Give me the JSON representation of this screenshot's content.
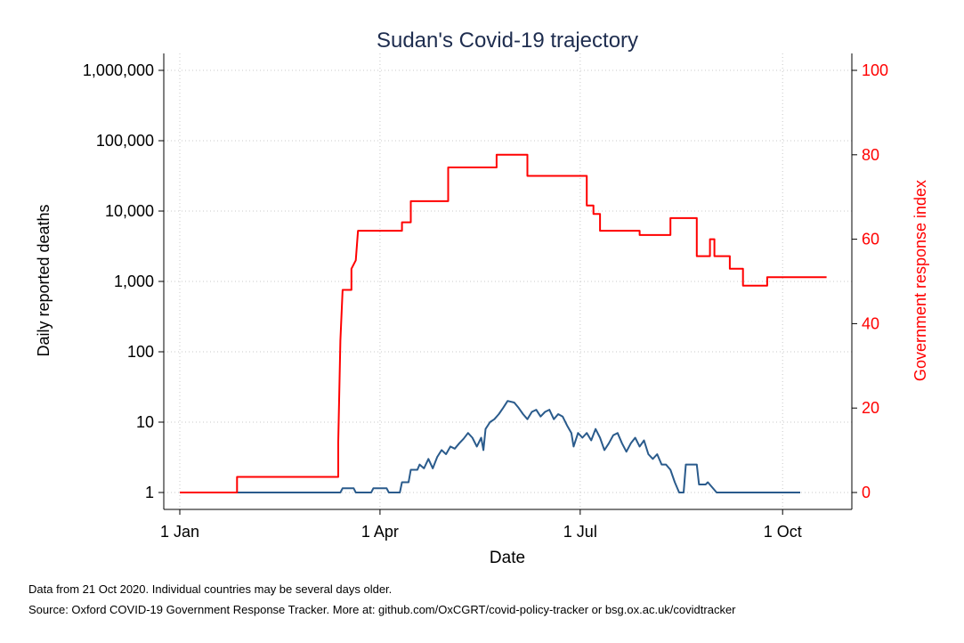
{
  "chart_data": {
    "type": "line",
    "title": "Sudan's Covid-19 trajectory",
    "xlabel": "Date",
    "ylabel_left": "Daily reported deaths",
    "ylabel_right": "Government response index",
    "x_ticks": [
      "1 Jan",
      "1 Apr",
      "1 Jul",
      "1 Oct"
    ],
    "x_tick_days": [
      0,
      91,
      182,
      274
    ],
    "x_range_days": [
      0,
      299
    ],
    "y_left_scale": "log",
    "y_left_ticks": [
      "1",
      "10",
      "100",
      "1,000",
      "10,000",
      "100,000",
      "1,000,000"
    ],
    "y_left_range": [
      1,
      1000000
    ],
    "y_right_ticks": [
      "0",
      "20",
      "40",
      "60",
      "80",
      "100"
    ],
    "y_right_range": [
      0,
      100
    ],
    "grid": true,
    "colors": {
      "deaths": "#2a5b8c",
      "index": "#ff0000",
      "grid": "#c8c8c8",
      "axis": "#000000"
    },
    "series": [
      {
        "axis": "left",
        "color": "#2a5b8c",
        "points": [
          [
            "2020-01-01",
            1
          ],
          [
            "2020-03-14",
            1
          ],
          [
            "2020-03-15",
            1.15
          ],
          [
            "2020-03-20",
            1.15
          ],
          [
            "2020-03-21",
            1
          ],
          [
            "2020-03-28",
            1
          ],
          [
            "2020-03-29",
            1.15
          ],
          [
            "2020-04-04",
            1.15
          ],
          [
            "2020-04-05",
            1
          ],
          [
            "2020-04-10",
            1
          ],
          [
            "2020-04-11",
            1.4
          ],
          [
            "2020-04-14",
            1.4
          ],
          [
            "2020-04-15",
            2.1
          ],
          [
            "2020-04-18",
            2.1
          ],
          [
            "2020-04-19",
            2.5
          ],
          [
            "2020-04-21",
            2.2
          ],
          [
            "2020-04-23",
            3
          ],
          [
            "2020-04-25",
            2.2
          ],
          [
            "2020-04-27",
            3.2
          ],
          [
            "2020-04-29",
            4
          ],
          [
            "2020-05-01",
            3.5
          ],
          [
            "2020-05-03",
            4.5
          ],
          [
            "2020-05-05",
            4.2
          ],
          [
            "2020-05-07",
            5
          ],
          [
            "2020-05-09",
            5.8
          ],
          [
            "2020-05-11",
            7
          ],
          [
            "2020-05-13",
            6
          ],
          [
            "2020-05-15",
            4.5
          ],
          [
            "2020-05-17",
            6
          ],
          [
            "2020-05-18",
            4
          ],
          [
            "2020-05-19",
            8
          ],
          [
            "2020-05-21",
            10
          ],
          [
            "2020-05-23",
            11
          ],
          [
            "2020-05-25",
            13
          ],
          [
            "2020-05-27",
            16
          ],
          [
            "2020-05-29",
            20
          ],
          [
            "2020-06-01",
            19
          ],
          [
            "2020-06-03",
            16
          ],
          [
            "2020-06-05",
            13
          ],
          [
            "2020-06-07",
            11
          ],
          [
            "2020-06-09",
            14
          ],
          [
            "2020-06-11",
            15
          ],
          [
            "2020-06-13",
            12
          ],
          [
            "2020-06-15",
            14
          ],
          [
            "2020-06-17",
            15
          ],
          [
            "2020-06-19",
            11
          ],
          [
            "2020-06-21",
            13
          ],
          [
            "2020-06-23",
            12
          ],
          [
            "2020-06-25",
            9
          ],
          [
            "2020-06-27",
            7
          ],
          [
            "2020-06-28",
            4.5
          ],
          [
            "2020-06-30",
            7
          ],
          [
            "2020-07-02",
            6
          ],
          [
            "2020-07-04",
            7
          ],
          [
            "2020-07-06",
            5.5
          ],
          [
            "2020-07-08",
            8
          ],
          [
            "2020-07-10",
            6
          ],
          [
            "2020-07-12",
            4
          ],
          [
            "2020-07-14",
            5
          ],
          [
            "2020-07-16",
            6.5
          ],
          [
            "2020-07-18",
            7
          ],
          [
            "2020-07-20",
            5
          ],
          [
            "2020-07-22",
            3.8
          ],
          [
            "2020-07-24",
            5
          ],
          [
            "2020-07-26",
            6
          ],
          [
            "2020-07-28",
            4.5
          ],
          [
            "2020-07-30",
            5.5
          ],
          [
            "2020-08-01",
            3.5
          ],
          [
            "2020-08-03",
            3
          ],
          [
            "2020-08-05",
            3.5
          ],
          [
            "2020-08-07",
            2.5
          ],
          [
            "2020-08-09",
            2.5
          ],
          [
            "2020-08-11",
            2.1
          ],
          [
            "2020-08-13",
            1.4
          ],
          [
            "2020-08-15",
            1
          ],
          [
            "2020-08-17",
            1
          ],
          [
            "2020-08-18",
            2.5
          ],
          [
            "2020-08-23",
            2.5
          ],
          [
            "2020-08-24",
            1.3
          ],
          [
            "2020-08-27",
            1.3
          ],
          [
            "2020-08-28",
            1.4
          ],
          [
            "2020-09-01",
            1
          ],
          [
            "2020-10-09",
            1
          ]
        ]
      },
      {
        "axis": "right",
        "color": "#ff0000",
        "points": [
          [
            "2020-01-01",
            0
          ],
          [
            "2020-01-27",
            0
          ],
          [
            "2020-01-27",
            3.7
          ],
          [
            "2020-03-13",
            3.7
          ],
          [
            "2020-03-13",
            12
          ],
          [
            "2020-03-14",
            36
          ],
          [
            "2020-03-15",
            48
          ],
          [
            "2020-03-19",
            48
          ],
          [
            "2020-03-19",
            53
          ],
          [
            "2020-03-21",
            55
          ],
          [
            "2020-03-22",
            62
          ],
          [
            "2020-04-11",
            62
          ],
          [
            "2020-04-11",
            64
          ],
          [
            "2020-04-15",
            64
          ],
          [
            "2020-04-15",
            69
          ],
          [
            "2020-05-02",
            69
          ],
          [
            "2020-05-02",
            77
          ],
          [
            "2020-05-24",
            77
          ],
          [
            "2020-05-24",
            80
          ],
          [
            "2020-06-07",
            80
          ],
          [
            "2020-06-07",
            75
          ],
          [
            "2020-07-04",
            75
          ],
          [
            "2020-07-04",
            68
          ],
          [
            "2020-07-07",
            68
          ],
          [
            "2020-07-07",
            66
          ],
          [
            "2020-07-10",
            66
          ],
          [
            "2020-07-10",
            62
          ],
          [
            "2020-07-28",
            62
          ],
          [
            "2020-07-28",
            61
          ],
          [
            "2020-08-11",
            61
          ],
          [
            "2020-08-11",
            65
          ],
          [
            "2020-08-23",
            65
          ],
          [
            "2020-08-23",
            56
          ],
          [
            "2020-08-29",
            56
          ],
          [
            "2020-08-29",
            60
          ],
          [
            "2020-08-31",
            60
          ],
          [
            "2020-08-31",
            56
          ],
          [
            "2020-09-07",
            56
          ],
          [
            "2020-09-07",
            53
          ],
          [
            "2020-09-13",
            53
          ],
          [
            "2020-09-13",
            49
          ],
          [
            "2020-09-24",
            49
          ],
          [
            "2020-09-24",
            51
          ],
          [
            "2020-10-21",
            51
          ]
        ]
      }
    ]
  },
  "footnotes": {
    "line1": "Data from 21 Oct 2020. Individual countries may be several days older.",
    "line2": "Source: Oxford COVID-19 Government Response Tracker. More at: github.com/OxCGRT/covid-policy-tracker or bsg.ox.ac.uk/covidtracker"
  }
}
